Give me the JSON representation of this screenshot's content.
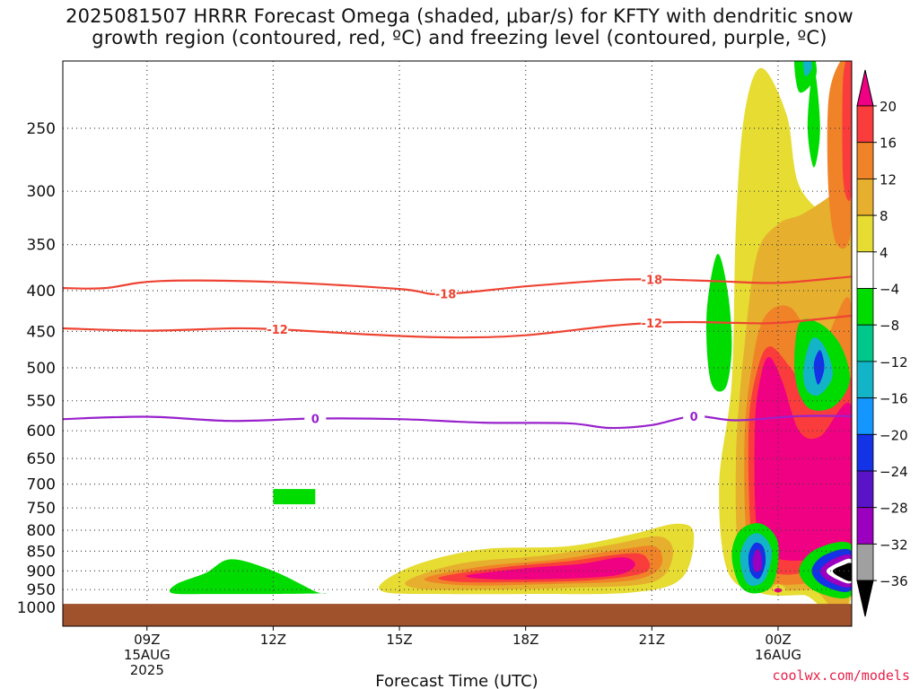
{
  "title_line1": "2025081507 HRRR Forecast Omega (shaded, μbar/s) for KFTY with dendritic snow",
  "title_line2": "growth region (contoured, red, ºC) and freezing level (contoured, purple, ºC)",
  "credit": "coolwx.com/models",
  "chart_data": {
    "type": "heatmap",
    "title": "2025081507 HRRR Forecast Omega (shaded, μbar/s) for KFTY with dendritic snow growth region (contoured, red, ºC) and freezing level (contoured, purple, ºC)",
    "xlabel": "Forecast Time (UTC)",
    "ylabel": "",
    "x_hours_utc_range": [
      7,
      25.75
    ],
    "x_ticks": [
      {
        "hour": 9,
        "label": "09Z",
        "sub": [
          "15AUG",
          "2025"
        ]
      },
      {
        "hour": 12,
        "label": "12Z",
        "sub": []
      },
      {
        "hour": 15,
        "label": "15Z",
        "sub": []
      },
      {
        "hour": 18,
        "label": "18Z",
        "sub": []
      },
      {
        "hour": 21,
        "label": "21Z",
        "sub": []
      },
      {
        "hour": 24,
        "label": "00Z",
        "sub": [
          "16AUG"
        ]
      }
    ],
    "y_scale": "log-pressure",
    "y_range_mb": [
      200,
      1025
    ],
    "y_ticks_mb": [
      250,
      300,
      350,
      400,
      450,
      500,
      550,
      600,
      650,
      700,
      750,
      800,
      850,
      900,
      950,
      1000
    ],
    "grid": "dotted",
    "surface_pressure_mb": 990,
    "colorbar": {
      "levels": [
        -36,
        -32,
        -28,
        -24,
        -20,
        -16,
        -12,
        -8,
        -4,
        4,
        8,
        12,
        16,
        20
      ],
      "colors": [
        "#000000",
        "#a0a0a0",
        "#9b00c0",
        "#5a14c8",
        "#1432e6",
        "#1496ff",
        "#14b4c8",
        "#00c88c",
        "#00dc00",
        "#ffffff",
        "#e6dc32",
        "#e6af2d",
        "#f08228",
        "#fa3c3c",
        "#f00082"
      ]
    },
    "contours": [
      {
        "name": "-18",
        "color": "#ee4433",
        "label": "-18",
        "points": [
          [
            7,
            397
          ],
          [
            8,
            397
          ],
          [
            9.3,
            389
          ],
          [
            12,
            390
          ],
          [
            15,
            398
          ],
          [
            16,
            404
          ],
          [
            18,
            395
          ],
          [
            20,
            388
          ],
          [
            21,
            387
          ],
          [
            22.5,
            389
          ],
          [
            24,
            391
          ],
          [
            25.75,
            384
          ]
        ]
      },
      {
        "name": "-12",
        "color": "#ee4433",
        "label": "-12",
        "points": [
          [
            7,
            446
          ],
          [
            9,
            449
          ],
          [
            11,
            446
          ],
          [
            12,
            447
          ],
          [
            13,
            450
          ],
          [
            15,
            456
          ],
          [
            16.5,
            458
          ],
          [
            18,
            455
          ],
          [
            20,
            443
          ],
          [
            21,
            439
          ],
          [
            22,
            438
          ],
          [
            23,
            439
          ],
          [
            24,
            439
          ],
          [
            25.75,
            430
          ]
        ]
      },
      {
        "name": "0",
        "color": "#9922cc",
        "label": "0",
        "points": [
          [
            7,
            580
          ],
          [
            9,
            576
          ],
          [
            11,
            583
          ],
          [
            13,
            579
          ],
          [
            15,
            580
          ],
          [
            17,
            586
          ],
          [
            19,
            587
          ],
          [
            20,
            595
          ],
          [
            21,
            590
          ],
          [
            22,
            575
          ],
          [
            23,
            582
          ],
          [
            24.5,
            575
          ],
          [
            25.75,
            575
          ]
        ]
      }
    ],
    "omega_regions": [
      {
        "value": "-8..-4",
        "hours": [
          12.0,
          13.0
        ],
        "mb": [
          710,
          740
        ]
      },
      {
        "value": "-8..-4",
        "hours": [
          9.6,
          13.2
        ],
        "mb": [
          870,
          965
        ]
      },
      {
        "value": "4..20+",
        "hours": [
          14.5,
          22.0
        ],
        "mb": [
          820,
          965
        ]
      },
      {
        "value": "4..20+",
        "hours": [
          22.5,
          25.75
        ],
        "mb": [
          205,
          970
        ]
      },
      {
        "value": "-36..-4",
        "hours": [
          22.3,
          25.75
        ],
        "mb": [
          360,
          970
        ]
      }
    ]
  }
}
